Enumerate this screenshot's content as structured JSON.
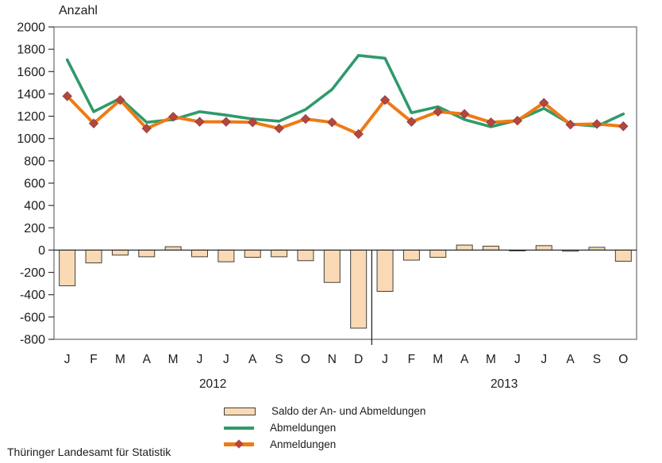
{
  "source": "Thüringer Landesamt für Statistik",
  "chart_data": {
    "type": "bar",
    "subtype": "bar+line combo",
    "title": "",
    "ylabel": "Anzahl",
    "xlabel": "",
    "ylim": [
      -800,
      2000
    ],
    "ytick_step": 200,
    "grid": false,
    "legend_position": "bottom",
    "categories": [
      "J",
      "F",
      "M",
      "A",
      "M",
      "J",
      "J",
      "A",
      "S",
      "O",
      "N",
      "D",
      "J",
      "F",
      "M",
      "A",
      "M",
      "J",
      "J",
      "A",
      "S",
      "O"
    ],
    "year_groups": [
      {
        "label": "2012",
        "months": 12
      },
      {
        "label": "2013",
        "months": 10
      }
    ],
    "series": [
      {
        "name": "Saldo der An- und Abmeldungen",
        "type": "bar",
        "color": "#F9DAB4",
        "border_color": "#3F3F3F",
        "values": [
          -320,
          -115,
          -45,
          -60,
          30,
          -60,
          -105,
          -65,
          -60,
          -95,
          -290,
          -700,
          -370,
          -90,
          -65,
          45,
          35,
          -5,
          40,
          -10,
          25,
          -100
        ]
      },
      {
        "name": "Abmeldungen",
        "type": "line",
        "color": "#2F9A6B",
        "values": [
          1705,
          1240,
          1360,
          1145,
          1170,
          1240,
          1210,
          1175,
          1155,
          1260,
          1440,
          1745,
          1720,
          1230,
          1285,
          1170,
          1105,
          1165,
          1270,
          1130,
          1110,
          1220
        ]
      },
      {
        "name": "Anmeldungen",
        "type": "line",
        "color": "#EF7A15",
        "marker": "diamond",
        "marker_color": "#B5463E",
        "marker_border_color": "#96423C",
        "values": [
          1380,
          1135,
          1345,
          1090,
          1195,
          1150,
          1150,
          1145,
          1090,
          1175,
          1145,
          1040,
          1345,
          1150,
          1240,
          1220,
          1145,
          1160,
          1320,
          1125,
          1130,
          1110
        ]
      }
    ]
  }
}
